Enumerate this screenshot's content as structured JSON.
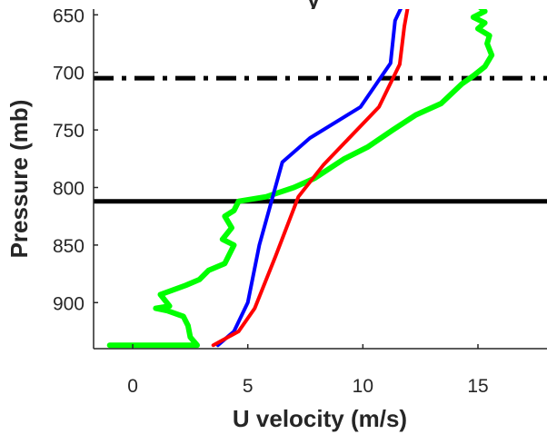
{
  "chart_data": {
    "type": "line",
    "title": "y",
    "xlabel": "U velocity (m/s)",
    "ylabel": "Pressure (mb)",
    "xlim": [
      -1.7,
      18
    ],
    "ylim": [
      645,
      940
    ],
    "y_reversed": true,
    "x_ticks": [
      0,
      5,
      10,
      15
    ],
    "x_tick_labels": [
      "0",
      "5",
      "10",
      "15"
    ],
    "y_ticks": [
      650,
      700,
      750,
      800,
      850,
      900
    ],
    "y_tick_labels": [
      "650",
      "700",
      "750",
      "800",
      "850",
      "900"
    ],
    "grid": false,
    "legend": "none",
    "series": [
      {
        "color": "#0000ff",
        "x": [
          3.7,
          4.4,
          5.0,
          5.5,
          6.5,
          7.7,
          9.9,
          11.2,
          11.4,
          11.8
        ],
        "y": [
          937,
          925,
          900,
          850,
          778,
          757,
          730,
          692,
          655,
          638
        ]
      },
      {
        "color": "#ff0000",
        "x": [
          3.5,
          4.6,
          5.3,
          6.2,
          7.2,
          8.3,
          10.7,
          11.6,
          11.8,
          12.0
        ],
        "y": [
          937,
          925,
          905,
          860,
          808,
          780,
          730,
          693,
          660,
          638
        ]
      },
      {
        "color": "#00ff00",
        "x": [
          -1.0,
          0.5,
          2.8,
          2.5,
          2.4,
          2.2,
          1.5,
          1.0,
          1.6,
          1.2,
          2.3,
          2.9,
          3.3,
          4.0,
          4.4,
          3.9,
          4.3,
          4.0,
          4.4,
          4.6,
          5.8,
          7.0,
          7.9,
          9.2,
          10.2,
          11.3,
          12.3,
          13.4,
          14.3,
          14.8,
          15.3,
          15.6,
          15.4,
          15.5,
          15.0,
          15.3,
          14.8,
          15.3,
          14.9,
          14.8
        ],
        "y": [
          937,
          937,
          937,
          930,
          920,
          912,
          907,
          905,
          903,
          893,
          885,
          880,
          872,
          866,
          850,
          845,
          835,
          825,
          820,
          812,
          808,
          800,
          792,
          775,
          765,
          750,
          737,
          727,
          710,
          703,
          695,
          685,
          675,
          668,
          662,
          657,
          652,
          647,
          640,
          638
        ]
      }
    ],
    "reference_lines": [
      {
        "orientation": "horizontal",
        "y": 705,
        "style": "dashdot",
        "color": "#000000"
      },
      {
        "orientation": "horizontal",
        "y": 812,
        "style": "solid",
        "color": "#000000"
      }
    ]
  }
}
